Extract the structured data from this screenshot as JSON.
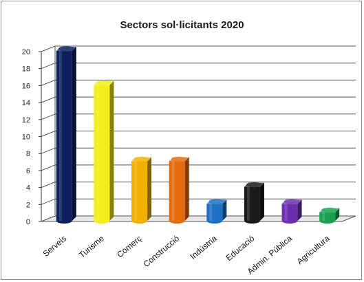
{
  "chart_data": {
    "type": "bar",
    "title": "Sectors sol·licitants 2020",
    "categories": [
      "Serveis",
      "Turisme",
      "Comerç",
      "Construcció",
      "Indústria",
      "Educació",
      "Admin. Pública",
      "Agricultura"
    ],
    "values": [
      20,
      16,
      7,
      7,
      2,
      4,
      2,
      1
    ],
    "colors": [
      "#0d1f5c",
      "#f2ee1a",
      "#f2b000",
      "#e56b0e",
      "#1f6fc4",
      "#1a1a1a",
      "#6a2fb0",
      "#1aa050"
    ],
    "ylim": [
      0,
      20
    ],
    "yticks": [
      "0",
      "2",
      "4",
      "6",
      "8",
      "10",
      "12",
      "14",
      "16",
      "18",
      "20"
    ],
    "grid": true,
    "style": "3d-cylinder-bar"
  }
}
